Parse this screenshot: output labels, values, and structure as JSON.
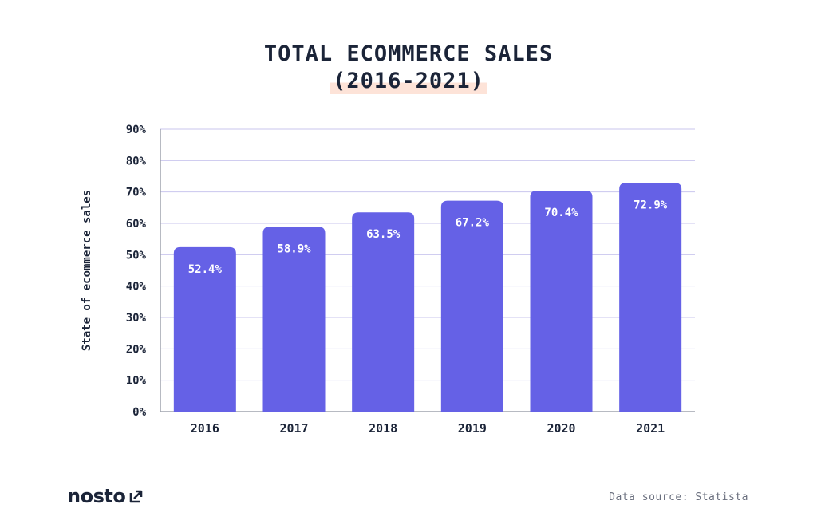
{
  "chart_data": {
    "type": "bar",
    "title": "TOTAL ECOMMERCE SALES",
    "subtitle": "(2016-2021)",
    "ylabel": "State of ecommerce sales",
    "xlabel": "",
    "categories": [
      "2016",
      "2017",
      "2018",
      "2019",
      "2020",
      "2021"
    ],
    "values": [
      52.4,
      58.9,
      63.5,
      67.2,
      70.4,
      72.9
    ],
    "data_labels": [
      "52.4%",
      "58.9%",
      "63.5%",
      "67.2%",
      "70.4%",
      "72.9%"
    ],
    "yticks": [
      "0%",
      "10%",
      "20%",
      "30%",
      "40%",
      "50%",
      "60%",
      "70%",
      "80%",
      "90%"
    ],
    "ylim": [
      0,
      90
    ],
    "grid": true,
    "bar_color": "#6561e6",
    "grid_color": "#c9c6ee",
    "axis_color": "#9fa3ad"
  },
  "footer": {
    "brand": "nosto",
    "brand_icon": "arrow-up-right-box-icon",
    "source": "Data source: Statista"
  }
}
